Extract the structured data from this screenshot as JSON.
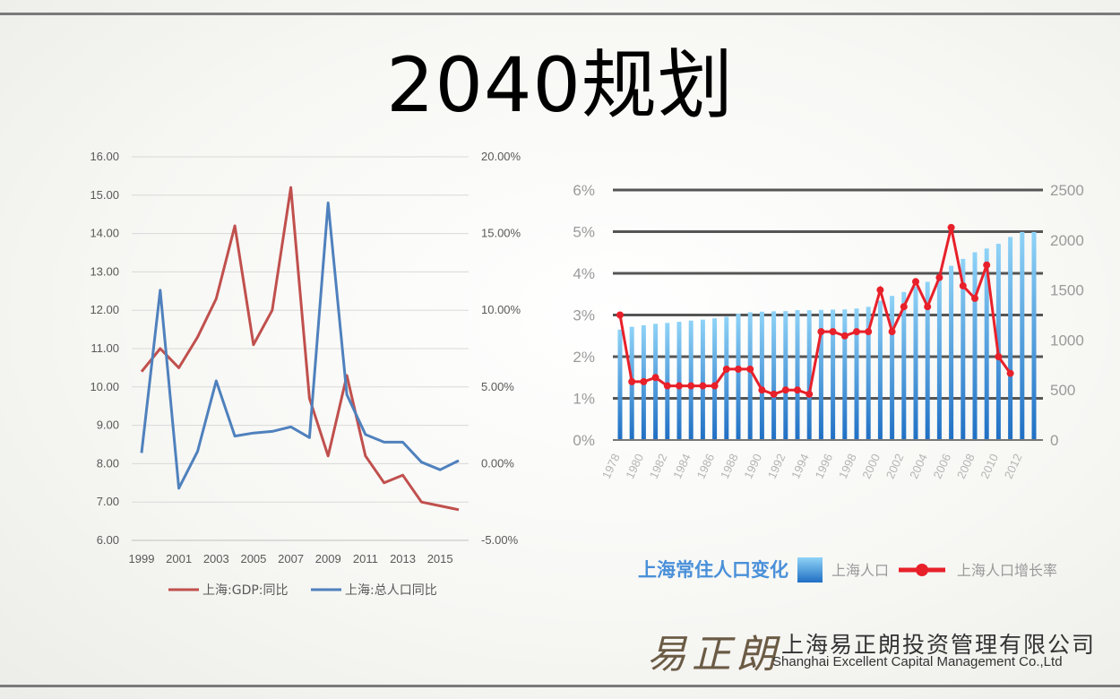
{
  "page": {
    "title": "2040规划"
  },
  "company": {
    "logo_text": "易正朗",
    "name_cn": "上海易正朗投资管理有限公司",
    "name_en": "Shanghai Excellent Capital Management Co.,Ltd"
  },
  "chart_data": [
    {
      "type": "line",
      "title": "",
      "x": [
        1999,
        2000,
        2001,
        2002,
        2003,
        2004,
        2005,
        2006,
        2007,
        2008,
        2009,
        2010,
        2011,
        2012,
        2013,
        2014,
        2015,
        2016
      ],
      "x_tick_labels": [
        "1999",
        "2001",
        "2003",
        "2005",
        "2007",
        "2009",
        "2011",
        "2013",
        "2015"
      ],
      "y_left": {
        "ylim": [
          6,
          16
        ],
        "ticks": [
          "6.00",
          "7.00",
          "8.00",
          "9.00",
          "10.00",
          "11.00",
          "12.00",
          "13.00",
          "14.00",
          "15.00",
          "16.00"
        ]
      },
      "y_right": {
        "ylim": [
          -5,
          20
        ],
        "ticks": [
          "-5.00%",
          "0.00%",
          "5.00%",
          "10.00%",
          "15.00%",
          "20.00%"
        ]
      },
      "grid": true,
      "legend_position": "bottom",
      "series": [
        {
          "name": "上海:GDP:同比",
          "axis": "left",
          "color": "#c0504d",
          "values": [
            10.4,
            11.0,
            10.5,
            11.3,
            12.3,
            14.2,
            11.1,
            12.0,
            15.2,
            9.7,
            8.2,
            10.3,
            8.2,
            7.5,
            7.7,
            7.0,
            6.9,
            6.8
          ]
        },
        {
          "name": "上海:总人口同比",
          "axis": "right",
          "color": "#4f81bd",
          "values": [
            0.7,
            11.3,
            -1.6,
            0.8,
            5.4,
            1.8,
            2.0,
            2.1,
            2.4,
            1.7,
            17.0,
            4.5,
            1.9,
            1.4,
            1.4,
            0.1,
            -0.4,
            0.2
          ]
        }
      ]
    },
    {
      "type": "bar",
      "title": "上海常住人口变化",
      "x": [
        1978,
        1979,
        1980,
        1981,
        1982,
        1983,
        1984,
        1985,
        1986,
        1987,
        1988,
        1989,
        1990,
        1991,
        1992,
        1993,
        1994,
        1995,
        1996,
        1997,
        1998,
        1999,
        2000,
        2001,
        2002,
        2003,
        2004,
        2005,
        2006,
        2007,
        2008,
        2009,
        2010,
        2011,
        2012,
        2013
      ],
      "x_tick_labels": [
        "1978",
        "1980",
        "1982",
        "1984",
        "1986",
        "1988",
        "1990",
        "1992",
        "1994",
        "1996",
        "1998",
        "2000",
        "2002",
        "2004",
        "2006",
        "2008",
        "2010",
        "2012"
      ],
      "y_left": {
        "ylim": [
          0,
          6
        ],
        "ticks": [
          "0%",
          "1%",
          "2%",
          "3%",
          "4%",
          "5%",
          "6%"
        ]
      },
      "y_right": {
        "ylim": [
          0,
          2500
        ],
        "ticks": [
          "0",
          "500",
          "1000",
          "1500",
          "2000",
          "2500"
        ]
      },
      "grid": true,
      "legend_position": "bottom",
      "series": [
        {
          "name": "上海人口",
          "axis": "right",
          "type": "bar",
          "color": "#3a8ed8",
          "values": [
            1104,
            1132,
            1147,
            1162,
            1171,
            1182,
            1194,
            1204,
            1217,
            1232,
            1262,
            1277,
            1283,
            1287,
            1289,
            1299,
            1298,
            1301,
            1304,
            1306,
            1315,
            1332,
            1393,
            1441,
            1480,
            1534,
            1582,
            1640,
            1742,
            1811,
            1877,
            1915,
            1962,
            2030,
            2080,
            2080
          ]
        },
        {
          "name": "上海人口增长率",
          "axis": "left",
          "type": "line",
          "color": "#e8202a",
          "values": [
            3.0,
            1.4,
            1.4,
            1.5,
            1.3,
            1.3,
            1.3,
            1.3,
            1.3,
            1.7,
            1.7,
            1.7,
            1.2,
            1.1,
            1.2,
            1.2,
            1.1,
            2.6,
            2.6,
            2.5,
            2.6,
            2.6,
            3.6,
            2.6,
            3.2,
            3.8,
            3.2,
            3.9,
            5.1,
            3.7,
            3.4,
            4.2,
            2.0,
            1.6,
            null,
            null
          ]
        }
      ]
    }
  ]
}
